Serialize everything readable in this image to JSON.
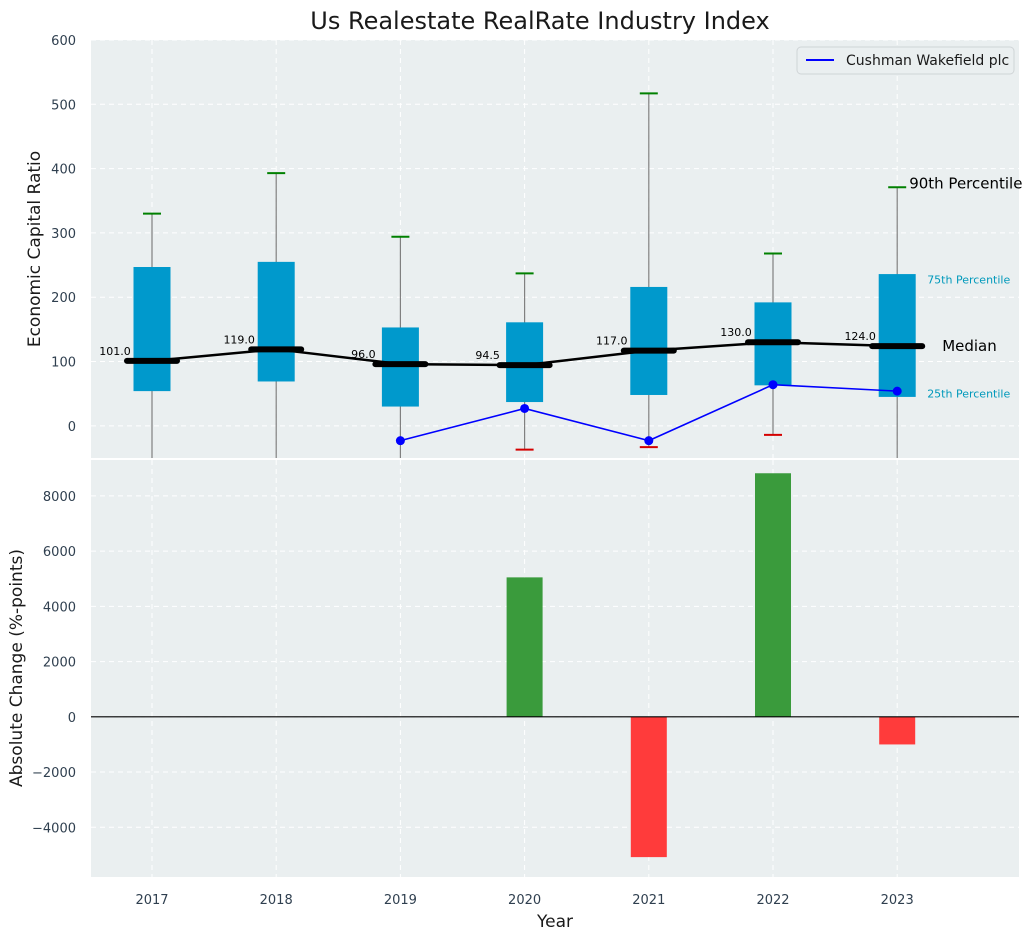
{
  "title": "Us Realestate RealRate Industry Index",
  "colors": {
    "background": "#eaeff0",
    "grid": "#ffffff",
    "box": "#0099cc",
    "median_marker": "#000000",
    "median_line": "#000000",
    "whisker": "#808080",
    "cap_high": "#008000",
    "cap_low": "#d40000",
    "company": "#0000ff",
    "bar_positive": "#3a9b3c",
    "bar_negative": "#ff3b3b",
    "percentile_annot": "#0099bb"
  },
  "chart_data": [
    {
      "type": "box",
      "title": "Us Realestate RealRate Industry Index",
      "xlabel": "",
      "ylabel": "Economic Capital Ratio",
      "ylim": [
        -50,
        600
      ],
      "yticks": [
        0,
        100,
        200,
        300,
        400,
        500,
        600
      ],
      "grid": true,
      "legend_position": "top-right",
      "categories": [
        "2017",
        "2018",
        "2019",
        "2020",
        "2021",
        "2022",
        "2023"
      ],
      "p90": [
        330,
        393,
        294,
        237,
        517,
        268,
        371
      ],
      "p75": [
        247,
        255,
        153,
        161,
        216,
        192,
        236
      ],
      "median": [
        101.0,
        119.0,
        96.0,
        94.5,
        117.0,
        130.0,
        124.0
      ],
      "median_labels": [
        "101.0",
        "119.0",
        "96.0",
        "94.5",
        "117.0",
        "130.0",
        "124.0"
      ],
      "p25": [
        54,
        69,
        30,
        37,
        48,
        63,
        45
      ],
      "p10": [
        null,
        null,
        null,
        -37,
        -33,
        -14,
        null
      ],
      "series": [
        {
          "name": "Cushman Wakefield plc",
          "values": [
            null,
            null,
            -23,
            27,
            -23,
            64,
            54
          ]
        }
      ],
      "annotations": {
        "p90": "90th Percentile",
        "p75": "75th Percentile",
        "median": "Median",
        "p25": "25th Percentile"
      }
    },
    {
      "type": "bar",
      "xlabel": "Year",
      "ylabel": "Absolute Change (%-points)",
      "ylim": [
        -5800,
        9300
      ],
      "yticks": [
        -4000,
        -2000,
        0,
        2000,
        4000,
        6000,
        8000
      ],
      "ytick_labels": [
        "−4000",
        "−2000",
        "0",
        "2000",
        "4000",
        "6000",
        "8000"
      ],
      "grid": true,
      "categories": [
        "2017",
        "2018",
        "2019",
        "2020",
        "2021",
        "2022",
        "2023"
      ],
      "values": [
        null,
        null,
        null,
        5050,
        -5080,
        8820,
        -1000
      ]
    }
  ]
}
